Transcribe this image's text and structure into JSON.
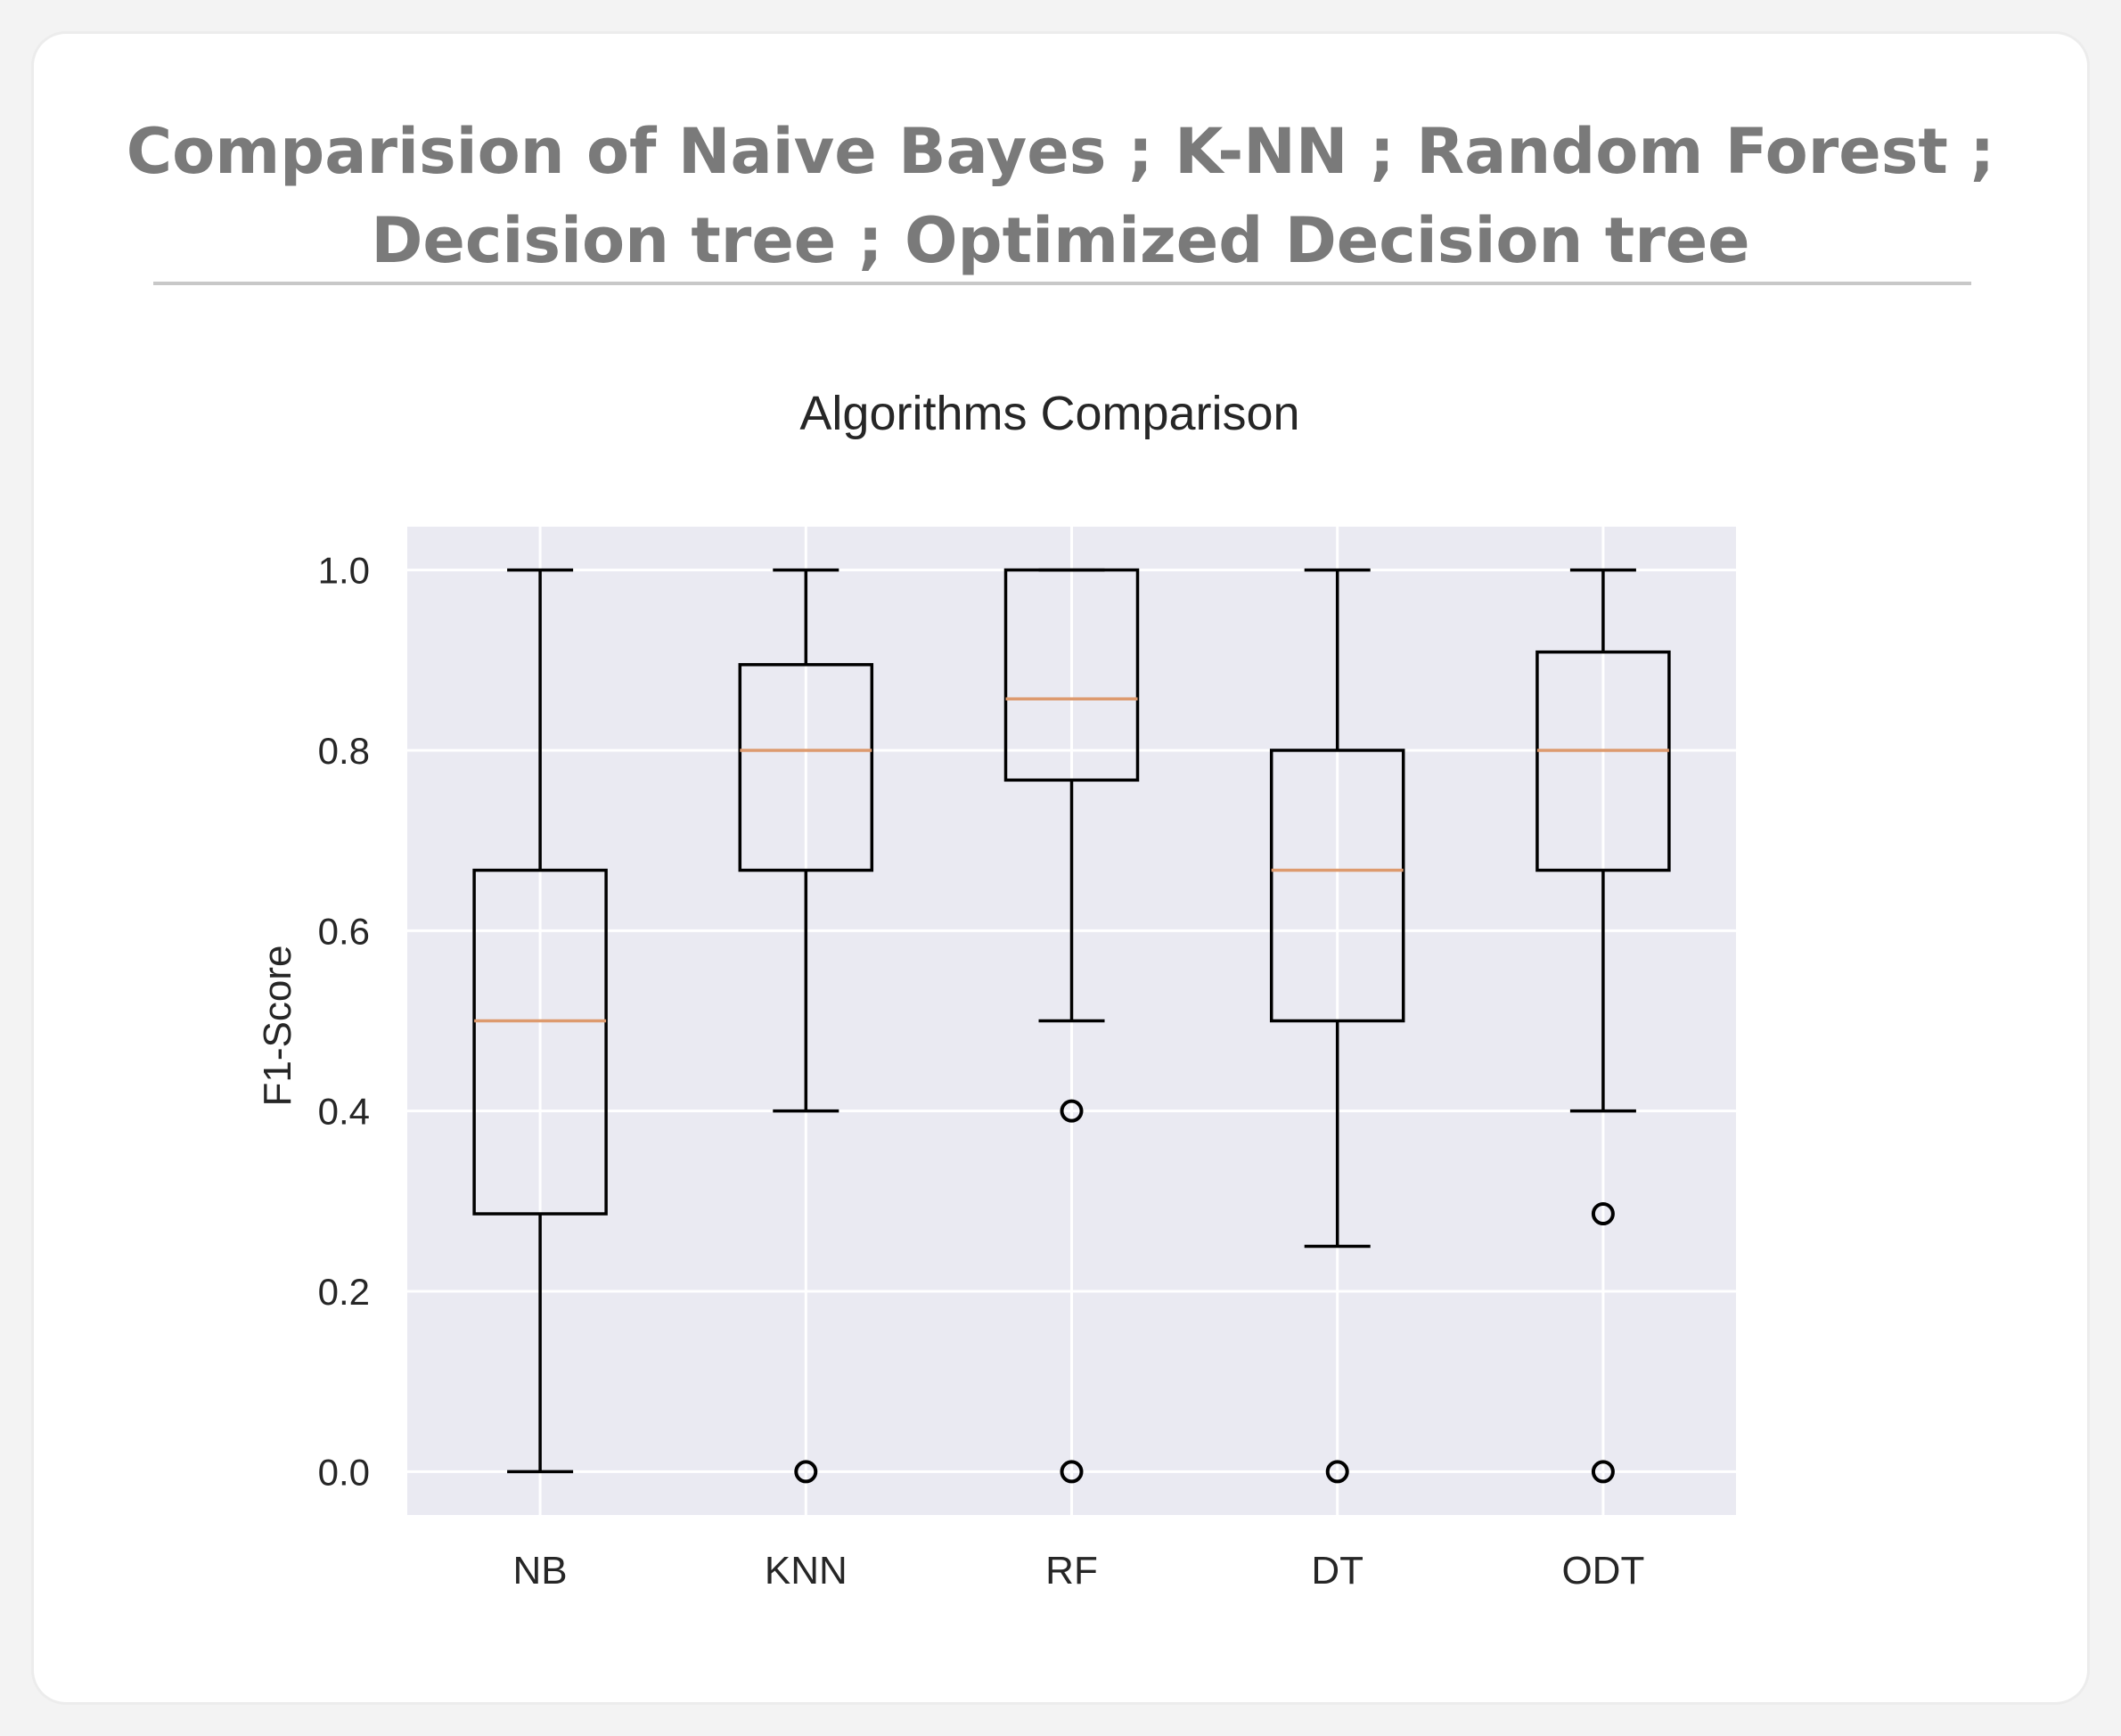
{
  "header": {
    "title": "Comparision of Naive Bayes ; K-NN ; Random Forest ; Decision tree ; Optimized Decision tree"
  },
  "chart_data": {
    "type": "boxplot",
    "title": "Algorithms Comparison",
    "xlabel": "",
    "ylabel": "F1-Score",
    "ylim": [
      -0.048,
      1.048
    ],
    "yticks": [
      "0.0",
      "0.2",
      "0.4",
      "0.6",
      "0.8",
      "1.0"
    ],
    "grid": true,
    "background": "#eaeaf2",
    "median_color": "#dd9a6e",
    "categories": [
      "NB",
      "KNN",
      "RF",
      "DT",
      "ODT"
    ],
    "boxes": [
      {
        "label": "NB",
        "whislo": 0.0,
        "q1": 0.286,
        "median": 0.5,
        "q3": 0.667,
        "whishi": 1.0,
        "fliers": []
      },
      {
        "label": "KNN",
        "whislo": 0.4,
        "q1": 0.667,
        "median": 0.8,
        "q3": 0.895,
        "whishi": 1.0,
        "fliers": [
          0.0
        ]
      },
      {
        "label": "RF",
        "whislo": 0.5,
        "q1": 0.767,
        "median": 0.857,
        "q3": 1.0,
        "whishi": 1.0,
        "fliers": [
          0.4,
          0.0
        ]
      },
      {
        "label": "DT",
        "whislo": 0.25,
        "q1": 0.5,
        "median": 0.667,
        "q3": 0.8,
        "whishi": 1.0,
        "fliers": [
          0.0
        ]
      },
      {
        "label": "ODT",
        "whislo": 0.4,
        "q1": 0.667,
        "median": 0.8,
        "q3": 0.909,
        "whishi": 1.0,
        "fliers": [
          0.286,
          0.0
        ]
      }
    ]
  }
}
